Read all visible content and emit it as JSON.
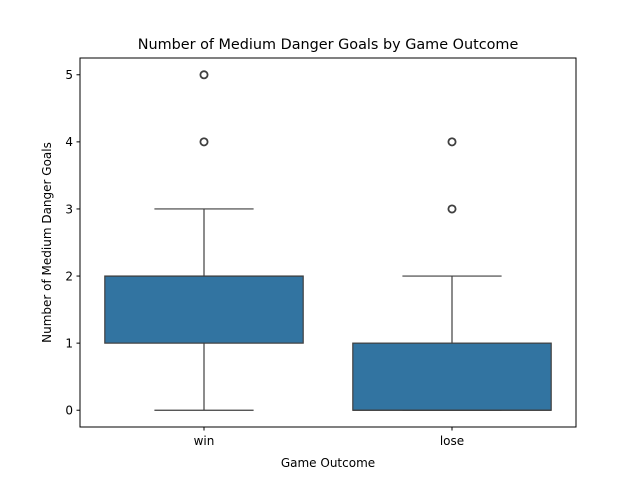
{
  "chart_data": {
    "type": "box",
    "title": "Number of Medium Danger Goals by Game Outcome",
    "xlabel": "Game Outcome",
    "ylabel": "Number of Medium Danger Goals",
    "categories": [
      "win",
      "lose"
    ],
    "ylim": [
      -0.25,
      5.25
    ],
    "yticks": [
      0,
      1,
      2,
      3,
      4,
      5
    ],
    "grid": false,
    "legend": "none",
    "box_color": "#3274a1",
    "line_color": "#3f3f3f",
    "boxes": [
      {
        "category": "win",
        "whisker_low": 0,
        "q1": 1,
        "median": 2,
        "q3": 2,
        "whisker_high": 3,
        "outliers": [
          4,
          5
        ]
      },
      {
        "category": "lose",
        "whisker_low": 0,
        "q1": 0,
        "median": 0,
        "q3": 1,
        "whisker_high": 2,
        "outliers": [
          3,
          4
        ]
      }
    ]
  }
}
